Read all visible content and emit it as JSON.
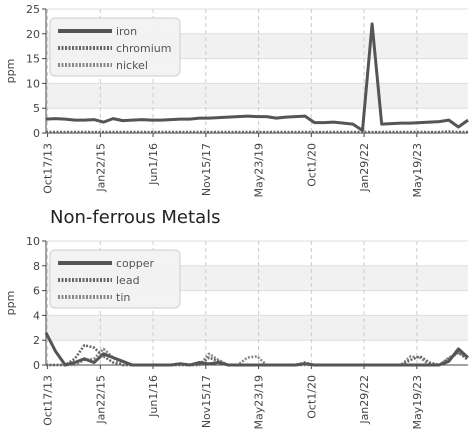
{
  "chart_data": [
    {
      "type": "line",
      "title": "",
      "xlabel": "",
      "ylabel": "ppm",
      "ylim": [
        0,
        25
      ],
      "yticks": [
        0,
        5,
        10,
        15,
        20,
        25
      ],
      "x_tick_labels": [
        "Oct17/13",
        "Jan22/15",
        "Jun1/16",
        "Nov15/17",
        "May23/19",
        "Oct1/20",
        "Jan29/22",
        "May19/23"
      ],
      "grid": true,
      "legend_position": "top-left",
      "series": [
        {
          "name": "iron",
          "color": "#555555",
          "style": "solid",
          "values": [
            2.8,
            2.9,
            2.8,
            2.6,
            2.6,
            2.7,
            2.2,
            2.9,
            2.5,
            2.6,
            2.7,
            2.6,
            2.6,
            2.7,
            2.8,
            2.8,
            3.0,
            3.0,
            3.1,
            3.2,
            3.3,
            3.4,
            3.3,
            3.3,
            3.0,
            3.2,
            3.3,
            3.4,
            2.1,
            2.1,
            2.2,
            2.0,
            1.8,
            0.5,
            22.0,
            1.8,
            1.9,
            2.0,
            2.0,
            2.1,
            2.2,
            2.3,
            2.6,
            1.2,
            2.6
          ]
        },
        {
          "name": "chromium",
          "color": "#666666",
          "style": "dotted",
          "values": [
            0.2,
            0.2,
            0.2,
            0.2,
            0.2,
            0.2,
            0.2,
            0.2,
            0.2,
            0.2,
            0.2,
            0.2,
            0.2,
            0.2,
            0.2,
            0.2,
            0.2,
            0.2,
            0.2,
            0.2,
            0.2,
            0.2,
            0.2,
            0.2,
            0.2,
            0.2,
            0.2,
            0.2,
            0.2,
            0.2,
            0.2,
            0.2,
            0.2,
            0.2,
            0.2,
            0.2,
            0.2,
            0.2,
            0.2,
            0.2,
            0.2,
            0.2,
            0.3,
            0.2,
            0.2
          ]
        },
        {
          "name": "nickel",
          "color": "#888888",
          "style": "dotted",
          "values": [
            0.1,
            0.1,
            0.1,
            0.1,
            0.1,
            0.1,
            0.1,
            0.1,
            0.1,
            0.1,
            0.1,
            0.1,
            0.1,
            0.1,
            0.1,
            0.1,
            0.1,
            0.1,
            0.1,
            0.1,
            0.1,
            0.1,
            0.1,
            0.1,
            0.1,
            0.1,
            0.1,
            0.1,
            0.1,
            0.1,
            0.1,
            0.1,
            0.1,
            0.1,
            0.1,
            0.1,
            0.1,
            0.1,
            0.1,
            0.1,
            0.1,
            0.1,
            0.2,
            0.1,
            0.1
          ]
        }
      ]
    },
    {
      "type": "line",
      "title": "Non-ferrous Metals",
      "xlabel": "",
      "ylabel": "ppm",
      "ylim": [
        0,
        10
      ],
      "yticks": [
        0,
        2,
        4,
        6,
        8,
        10
      ],
      "x_tick_labels": [
        "Oct17/13",
        "Jan22/15",
        "Jun1/16",
        "Nov15/17",
        "May23/19",
        "Oct1/20",
        "Jan29/22",
        "May19/23"
      ],
      "grid": true,
      "legend_position": "top-left",
      "series": [
        {
          "name": "copper",
          "color": "#555555",
          "style": "solid",
          "values": [
            2.6,
            1.1,
            0,
            0.2,
            0.5,
            0.2,
            0.9,
            0.6,
            0.3,
            0,
            0,
            0,
            0,
            0,
            0.1,
            0,
            0.2,
            0.1,
            0.2,
            0,
            0,
            0,
            0,
            0,
            0,
            0,
            0,
            0.1,
            0,
            0,
            0,
            0,
            0,
            0,
            0,
            0,
            0,
            0,
            0,
            0,
            0,
            0,
            0.3,
            1.3,
            0.6
          ]
        },
        {
          "name": "lead",
          "color": "#666666",
          "style": "dotted",
          "values": [
            0,
            0,
            0,
            0.5,
            1.6,
            1.4,
            0.7,
            0.2,
            0,
            0,
            0,
            0,
            0,
            0,
            0,
            0,
            0,
            0.6,
            0.3,
            0,
            0,
            0,
            0,
            0,
            0,
            0,
            0,
            0.2,
            0,
            0,
            0,
            0,
            0,
            0,
            0,
            0,
            0,
            0,
            0.4,
            0.7,
            0.2,
            0,
            0.5,
            1.0,
            0.4
          ]
        },
        {
          "name": "tin",
          "color": "#888888",
          "style": "dotted",
          "values": [
            0,
            0,
            0,
            0,
            0.4,
            0.5,
            1.3,
            0.6,
            0,
            0,
            0,
            0,
            0,
            0,
            0,
            0,
            0,
            0.9,
            0.4,
            0,
            0,
            0.6,
            0.7,
            0,
            0,
            0,
            0,
            0,
            0,
            0,
            0,
            0,
            0,
            0,
            0,
            0,
            0,
            0,
            0.7,
            0.6,
            0,
            0,
            0.6,
            1.0,
            0.6
          ]
        }
      ]
    }
  ]
}
